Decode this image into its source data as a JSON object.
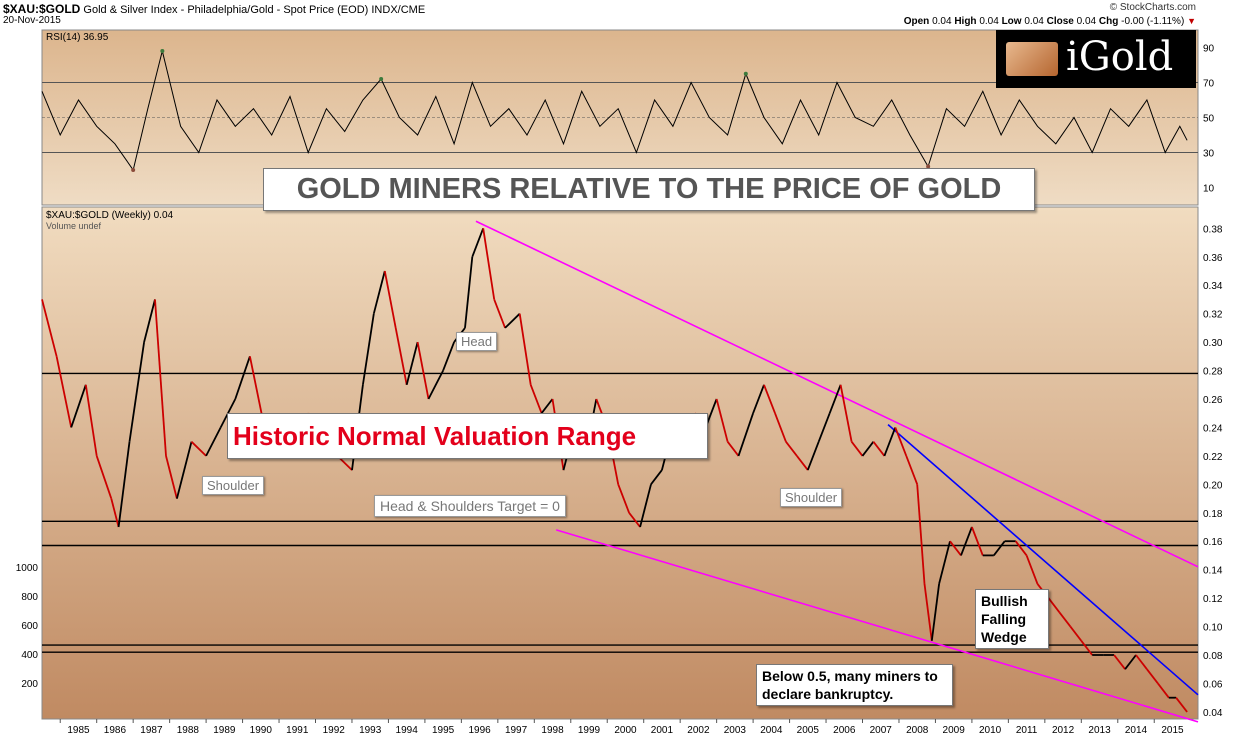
{
  "header": {
    "symbol": "$XAU:$GOLD",
    "description": "Gold & Silver Index - Philadelphia/Gold - Spot Price (EOD)",
    "exchange": "INDX/CME",
    "date": "20-Nov-2015",
    "brand": "© StockCharts.com",
    "open_label": "Open",
    "open": "0.04",
    "high_label": "High",
    "high": "0.04",
    "low_label": "Low",
    "low": "0.04",
    "close_label": "Close",
    "close": "0.04",
    "chg_label": "Chg",
    "chg": "-0.00 (-1.11%)"
  },
  "logo": {
    "text": "iGold"
  },
  "annotations": {
    "main_title": "GOLD MINERS RELATIVE TO THE PRICE OF GOLD",
    "normal_range": "Historic Normal Valuation Range",
    "head": "Head",
    "shoulder_left": "Shoulder",
    "shoulder_right": "Shoulder",
    "target": "Head & Shoulders Target = 0",
    "wedge": "Bullish Falling Wedge",
    "bankrupt": "Below 0.5, many miners to declare bankruptcy."
  },
  "colors": {
    "panel_top": "#efd6b6",
    "panel_bottom": "#c8936a",
    "price_line": "#000000",
    "price_down": "#cc0000",
    "magenta_trend": "#ff00ff",
    "blue_trend": "#0000ff",
    "rsi_overbought_fill": "#3c7a3c",
    "rsi_oversold_fill": "#8a4b3a"
  },
  "chart_data": [
    {
      "type": "line",
      "name": "RSI(14)",
      "legend": "RSI(14) 36.95",
      "last_value": 36.95,
      "ylim": [
        0,
        100
      ],
      "yticks": [
        10,
        30,
        50,
        70,
        90
      ],
      "reference_lines": [
        30,
        50,
        70
      ],
      "x": [
        1984.5,
        1985.0,
        1985.5,
        1986.0,
        1986.5,
        1987.0,
        1987.4,
        1987.8,
        1988.3,
        1988.8,
        1989.3,
        1989.8,
        1990.3,
        1990.8,
        1991.3,
        1991.8,
        1992.3,
        1992.8,
        1993.3,
        1993.8,
        1994.3,
        1994.8,
        1995.3,
        1995.8,
        1996.3,
        1996.8,
        1997.3,
        1997.8,
        1998.3,
        1998.8,
        1999.3,
        1999.8,
        2000.3,
        2000.8,
        2001.3,
        2001.8,
        2002.3,
        2002.8,
        2003.3,
        2003.8,
        2004.3,
        2004.8,
        2005.3,
        2005.8,
        2006.3,
        2006.8,
        2007.3,
        2007.8,
        2008.3,
        2008.8,
        2009.3,
        2009.8,
        2010.3,
        2010.8,
        2011.3,
        2011.8,
        2012.3,
        2012.8,
        2013.3,
        2013.8,
        2014.3,
        2014.8,
        2015.3,
        2015.7,
        2015.9
      ],
      "y": [
        65,
        40,
        60,
        45,
        35,
        20,
        55,
        88,
        45,
        30,
        60,
        45,
        55,
        40,
        62,
        30,
        55,
        42,
        60,
        72,
        50,
        40,
        62,
        35,
        70,
        45,
        55,
        40,
        60,
        35,
        65,
        45,
        55,
        30,
        60,
        45,
        70,
        50,
        40,
        75,
        50,
        35,
        60,
        40,
        70,
        50,
        45,
        60,
        40,
        22,
        55,
        45,
        65,
        40,
        60,
        45,
        35,
        50,
        30,
        55,
        45,
        60,
        30,
        45,
        37
      ]
    },
    {
      "type": "line",
      "name": "$XAU:$GOLD (Weekly)",
      "legend": "$XAU:$GOLD (Weekly) 0.04",
      "volume_legend": "Volume undef",
      "x": [
        1984.5,
        1984.9,
        1985.3,
        1985.7,
        1986.0,
        1986.4,
        1986.6,
        1986.9,
        1987.3,
        1987.6,
        1987.9,
        1988.2,
        1988.6,
        1989.0,
        1989.4,
        1989.8,
        1990.2,
        1990.6,
        1991.0,
        1991.4,
        1991.8,
        1992.2,
        1992.6,
        1993.0,
        1993.3,
        1993.6,
        1993.9,
        1994.2,
        1994.5,
        1994.8,
        1995.1,
        1995.5,
        1995.8,
        1996.1,
        1996.3,
        1996.6,
        1996.9,
        1997.2,
        1997.6,
        1997.9,
        1998.2,
        1998.5,
        1998.8,
        1999.1,
        1999.4,
        1999.7,
        2000.0,
        2000.3,
        2000.6,
        2000.9,
        2001.2,
        2001.5,
        2001.8,
        2002.1,
        2002.4,
        2002.7,
        2003.0,
        2003.3,
        2003.6,
        2004.0,
        2004.3,
        2004.6,
        2004.9,
        2005.2,
        2005.5,
        2005.8,
        2006.1,
        2006.4,
        2006.7,
        2007.0,
        2007.3,
        2007.6,
        2007.9,
        2008.2,
        2008.5,
        2008.7,
        2008.9,
        2009.1,
        2009.4,
        2009.7,
        2010.0,
        2010.3,
        2010.6,
        2010.9,
        2011.2,
        2011.5,
        2011.8,
        2012.1,
        2012.4,
        2012.7,
        2013.0,
        2013.3,
        2013.6,
        2013.9,
        2014.2,
        2014.5,
        2014.8,
        2015.1,
        2015.4,
        2015.6,
        2015.9
      ],
      "y": [
        0.33,
        0.29,
        0.24,
        0.27,
        0.22,
        0.19,
        0.17,
        0.23,
        0.3,
        0.33,
        0.22,
        0.19,
        0.23,
        0.22,
        0.24,
        0.26,
        0.29,
        0.24,
        0.22,
        0.22,
        0.25,
        0.23,
        0.22,
        0.21,
        0.27,
        0.32,
        0.35,
        0.31,
        0.27,
        0.3,
        0.26,
        0.28,
        0.3,
        0.31,
        0.36,
        0.38,
        0.33,
        0.31,
        0.32,
        0.27,
        0.25,
        0.26,
        0.21,
        0.24,
        0.22,
        0.26,
        0.24,
        0.2,
        0.18,
        0.17,
        0.2,
        0.21,
        0.24,
        0.22,
        0.25,
        0.24,
        0.26,
        0.23,
        0.22,
        0.25,
        0.27,
        0.25,
        0.23,
        0.22,
        0.21,
        0.23,
        0.25,
        0.27,
        0.23,
        0.22,
        0.23,
        0.22,
        0.24,
        0.22,
        0.2,
        0.13,
        0.09,
        0.13,
        0.16,
        0.15,
        0.17,
        0.15,
        0.15,
        0.16,
        0.16,
        0.15,
        0.13,
        0.12,
        0.11,
        0.1,
        0.09,
        0.08,
        0.08,
        0.08,
        0.07,
        0.08,
        0.07,
        0.06,
        0.05,
        0.05,
        0.04
      ],
      "ylim": [
        0.035,
        0.395
      ],
      "yticks": [
        "0.04",
        "0.06",
        "0.08",
        "0.10",
        "0.12",
        "0.14",
        "0.16",
        "0.18",
        "0.20",
        "0.22",
        "0.24",
        "0.26",
        "0.28",
        "0.30",
        "0.32",
        "0.34",
        "0.36",
        "0.38"
      ],
      "left_axis_ticks": [
        "1000",
        "800",
        "600",
        "400",
        "200"
      ],
      "xticks": [
        "1985",
        "1986",
        "1987",
        "1988",
        "1989",
        "1990",
        "1991",
        "1992",
        "1993",
        "1994",
        "1995",
        "1996",
        "1997",
        "1998",
        "1999",
        "2000",
        "2001",
        "2002",
        "2003",
        "2004",
        "2005",
        "2006",
        "2007",
        "2008",
        "2009",
        "2010",
        "2011",
        "2012",
        "2013",
        "2014",
        "2015"
      ],
      "horizontal_lines": [
        0.278,
        0.174,
        0.157,
        0.087,
        0.082
      ],
      "trendlines": [
        {
          "color": "magenta",
          "from": [
            1996.4,
            0.385
          ],
          "to": [
            2016.2,
            0.142
          ]
        },
        {
          "color": "magenta",
          "from": [
            1998.6,
            0.168
          ],
          "to": [
            2016.2,
            0.033
          ]
        },
        {
          "color": "blue",
          "from": [
            2007.7,
            0.242
          ],
          "to": [
            2016.2,
            0.052
          ]
        }
      ]
    }
  ]
}
